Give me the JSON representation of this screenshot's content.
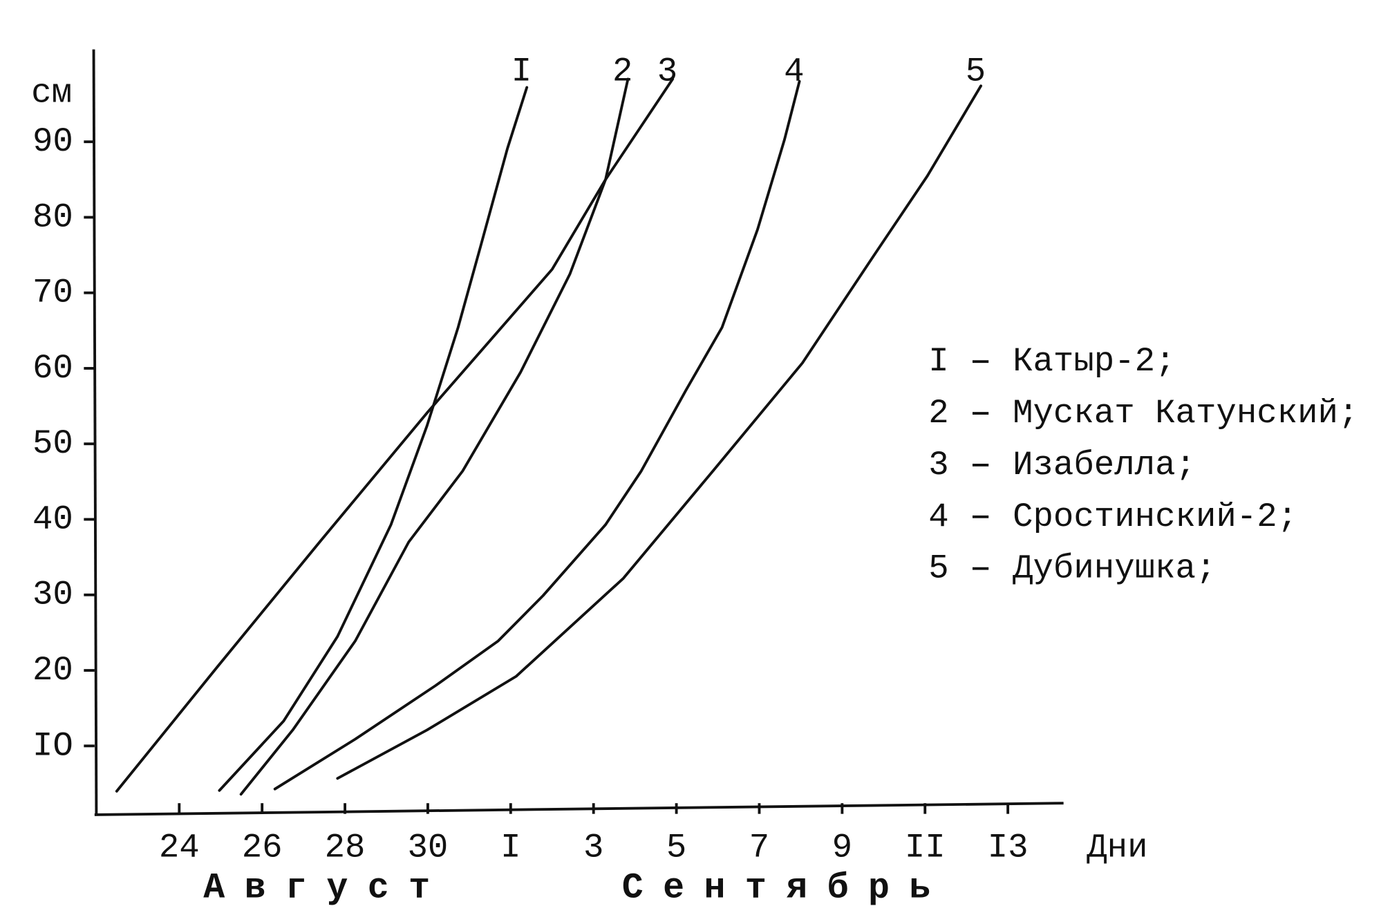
{
  "chart_data": {
    "type": "line",
    "y_label": "см",
    "x_label": "Дни",
    "months": [
      "Август",
      "Сентябрь"
    ],
    "grid": false,
    "color": "#111111",
    "xlim": [
      22,
      45.3
    ],
    "ylim": [
      1,
      102
    ],
    "xticks": [
      24,
      26,
      28,
      30,
      {
        "value": 32,
        "label": "I"
      },
      {
        "value": 34,
        "label": "3"
      },
      {
        "value": 36,
        "label": "5"
      },
      {
        "value": 38,
        "label": "7"
      },
      {
        "value": 40,
        "label": "9"
      },
      {
        "value": 42,
        "label": "II"
      },
      {
        "value": 44,
        "label": "I3"
      }
    ],
    "yticks": [
      {
        "value": 10,
        "label": "IO"
      },
      20,
      30,
      40,
      50,
      60,
      70,
      80,
      90
    ],
    "series": [
      {
        "label": "I",
        "name": "Катыр-2;",
        "x": [
          24.97,
          26.52,
          27.82,
          29.11,
          29.98,
          30.73,
          31.27,
          31.92,
          32.39
        ],
        "values": [
          4.1,
          13.3,
          24.5,
          39.3,
          52.4,
          65.4,
          76.1,
          89.1,
          97.2
        ]
      },
      {
        "label": "2",
        "name": "Мускат Катунский;",
        "x": [
          25.49,
          26.74,
          28.25,
          29.54,
          30.84,
          32.24,
          33.43,
          34.29,
          34.83
        ],
        "values": [
          3.6,
          12.1,
          23.9,
          37.0,
          46.4,
          59.5,
          72.5,
          85.0,
          98.3
        ]
      },
      {
        "label": "3",
        "name": "Изабелла;",
        "x": [
          22.49,
          24.91,
          27.39,
          29.98,
          33.0,
          34.29,
          35.91
        ],
        "values": [
          4.0,
          20.4,
          37.0,
          54.1,
          73.1,
          85.0,
          98.3
        ]
      },
      {
        "label": "4",
        "name": "Сростинский-2;",
        "x": [
          26.31,
          28.25,
          30.19,
          31.7,
          32.78,
          34.29,
          35.15,
          36.23,
          37.1,
          37.96,
          38.61,
          38.97
        ],
        "values": [
          4.3,
          10.9,
          18.0,
          23.9,
          29.9,
          39.3,
          46.4,
          57.1,
          65.4,
          78.4,
          90.3,
          98.0
        ]
      },
      {
        "label": "5",
        "name": "Дубинушка;",
        "x": [
          27.82,
          29.98,
          32.13,
          34.72,
          36.88,
          39.04,
          40.76,
          42.06,
          43.35
        ],
        "values": [
          5.7,
          12.1,
          19.2,
          32.2,
          46.4,
          60.7,
          74.9,
          85.5,
          97.4
        ]
      }
    ]
  }
}
